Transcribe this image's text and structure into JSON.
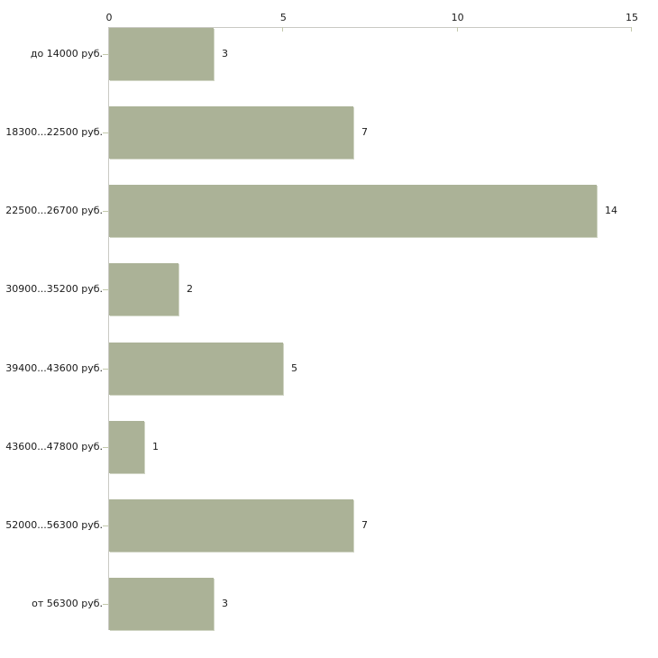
{
  "chart_data": {
    "type": "bar",
    "orientation": "horizontal",
    "title": "",
    "xlabel": "",
    "ylabel": "",
    "categories": [
      "до 14000 руб.",
      "18300...22500 руб.",
      "22500...26700 руб.",
      "30900...35200 руб.",
      "39400...43600 руб.",
      "43600...47800 руб.",
      "52000...56300 руб.",
      "от 56300 руб."
    ],
    "values": [
      3,
      7,
      14,
      2,
      5,
      1,
      7,
      3
    ],
    "value_labels": [
      "3",
      "7",
      "14",
      "2",
      "5",
      "1",
      "7",
      "3"
    ],
    "xticks": [
      0,
      5,
      10,
      15
    ],
    "xlim": [
      0,
      15
    ],
    "grid": false,
    "legend": false,
    "axis_position": "top",
    "colors": {
      "bar": "#abb297",
      "axis_line": "#c9c9c3",
      "tick_mark": "#c3c9ac",
      "text": "#1a1a1a",
      "background": "#ffffff"
    }
  }
}
